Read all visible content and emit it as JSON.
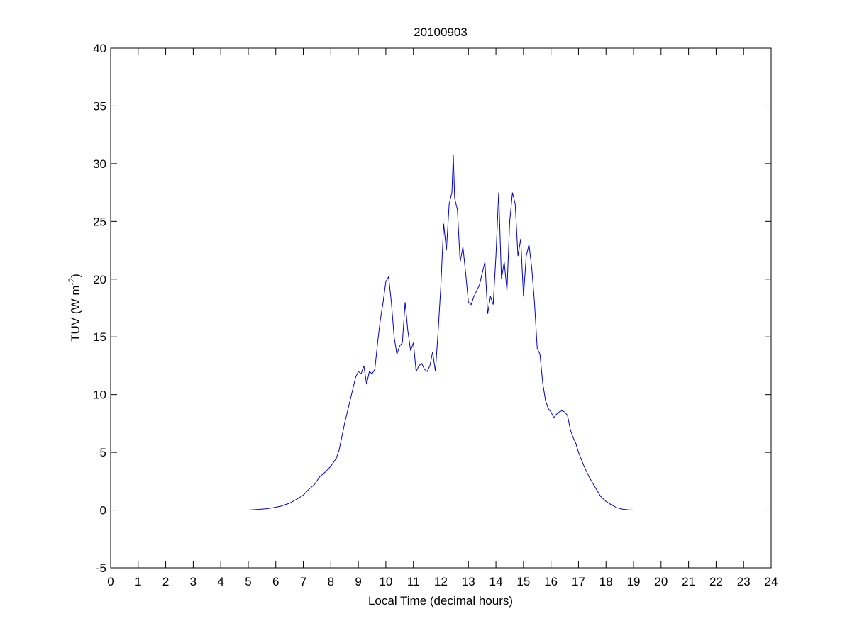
{
  "chart_data": {
    "type": "line",
    "title": "20100903",
    "xlabel": "Local Time (decimal hours)",
    "ylabel_main": "TUV (W m",
    "ylabel_sup": "-2",
    "ylabel_close": ")",
    "xlim": [
      0,
      24
    ],
    "ylim": [
      -5,
      40
    ],
    "xticks": [
      0,
      1,
      2,
      3,
      4,
      5,
      6,
      7,
      8,
      9,
      10,
      11,
      12,
      13,
      14,
      15,
      16,
      17,
      18,
      19,
      20,
      21,
      22,
      23,
      24
    ],
    "yticks": [
      -5,
      0,
      5,
      10,
      15,
      20,
      25,
      30,
      35,
      40
    ],
    "grid": false,
    "series": [
      {
        "color": "#0000cc",
        "style": "solid",
        "x": [
          0,
          5.0,
          5.3,
          5.6,
          5.9,
          6.2,
          6.5,
          6.8,
          7.0,
          7.2,
          7.4,
          7.6,
          7.8,
          8.0,
          8.2,
          8.3,
          8.5,
          8.7,
          8.9,
          9.0,
          9.1,
          9.2,
          9.3,
          9.4,
          9.5,
          9.6,
          9.7,
          9.8,
          9.9,
          10.0,
          10.1,
          10.2,
          10.3,
          10.4,
          10.5,
          10.6,
          10.7,
          10.8,
          10.9,
          11.0,
          11.1,
          11.2,
          11.3,
          11.4,
          11.5,
          11.6,
          11.7,
          11.8,
          11.9,
          12.0,
          12.1,
          12.2,
          12.3,
          12.4,
          12.45,
          12.5,
          12.6,
          12.7,
          12.8,
          12.9,
          13.0,
          13.1,
          13.2,
          13.3,
          13.4,
          13.5,
          13.6,
          13.7,
          13.8,
          13.9,
          14.0,
          14.1,
          14.2,
          14.3,
          14.4,
          14.5,
          14.6,
          14.7,
          14.8,
          14.9,
          15.0,
          15.1,
          15.2,
          15.3,
          15.4,
          15.5,
          15.6,
          15.7,
          15.8,
          15.9,
          16.0,
          16.1,
          16.2,
          16.3,
          16.4,
          16.5,
          16.6,
          16.7,
          16.8,
          16.9,
          17.0,
          17.2,
          17.4,
          17.6,
          17.8,
          18.0,
          18.2,
          18.4,
          18.6,
          18.8,
          19.0,
          19.2,
          24
        ],
        "y": [
          0,
          0,
          0.05,
          0.1,
          0.2,
          0.35,
          0.6,
          1.0,
          1.3,
          1.8,
          2.2,
          2.9,
          3.3,
          3.8,
          4.5,
          5.2,
          7.5,
          9.5,
          11.5,
          12.0,
          11.8,
          12.5,
          10.9,
          12.0,
          11.8,
          12.2,
          14.5,
          16.5,
          18.0,
          19.8,
          20.2,
          18.0,
          15.0,
          13.5,
          14.2,
          14.5,
          18.0,
          15.5,
          13.8,
          14.5,
          12.0,
          12.5,
          12.7,
          12.2,
          12.0,
          12.5,
          13.7,
          12.0,
          15.5,
          19.5,
          24.8,
          22.5,
          26.5,
          27.5,
          30.8,
          27.0,
          26.0,
          21.5,
          22.8,
          20.5,
          18.0,
          17.8,
          18.5,
          19.0,
          19.5,
          20.5,
          21.5,
          17.0,
          18.5,
          17.8,
          22.0,
          27.5,
          20.0,
          21.5,
          19.0,
          25.0,
          27.5,
          26.5,
          22.0,
          23.5,
          18.5,
          22.0,
          23.0,
          21.0,
          18.0,
          14.0,
          13.5,
          11.0,
          9.5,
          8.8,
          8.5,
          8.0,
          8.3,
          8.5,
          8.6,
          8.5,
          8.2,
          7.0,
          6.3,
          5.8,
          5.0,
          3.8,
          2.8,
          2.0,
          1.2,
          0.75,
          0.45,
          0.2,
          0.08,
          0.03,
          0.0,
          0.0,
          0
        ]
      },
      {
        "color": "#ff0000",
        "style": "dashed",
        "x": [
          0,
          24
        ],
        "y": [
          0,
          0
        ]
      }
    ]
  }
}
